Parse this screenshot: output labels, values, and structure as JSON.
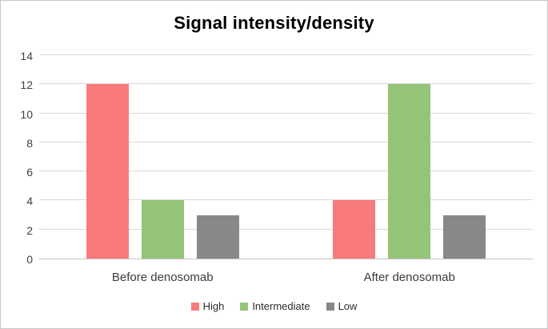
{
  "chart_data": {
    "type": "bar",
    "title": "Signal intensity/density",
    "categories": [
      "Before denosomab",
      "After denosomab"
    ],
    "series": [
      {
        "name": "High",
        "color": "#f97a7a",
        "values": [
          12,
          4
        ]
      },
      {
        "name": "Intermediate",
        "color": "#94c478",
        "values": [
          4,
          12
        ]
      },
      {
        "name": "Low",
        "color": "#888888",
        "values": [
          3,
          3
        ]
      }
    ],
    "ylim": [
      0,
      14
    ],
    "yticks": [
      0,
      2,
      4,
      6,
      8,
      10,
      12,
      14
    ],
    "xlabel": "",
    "ylabel": "",
    "grid": "horizontal",
    "gridline_color": "#d9d9d9",
    "axis_line_color": "#c3c3c3",
    "legend_position": "bottom",
    "legend_entries": [
      "High",
      "Intermediate",
      "Low"
    ]
  }
}
